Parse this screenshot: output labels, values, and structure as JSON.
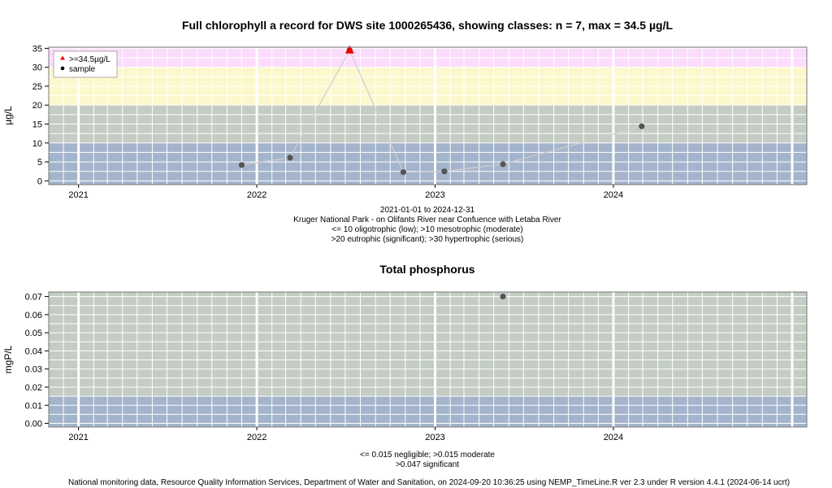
{
  "footer": "National monitoring data, Resource Quality Information Services, Department of Water and Sanitation, on 2024-09-20 10:36:25 using NEMP_TimeLine.R ver 2.3 under R version 4.4.1 (2024-06-14 ucrt)",
  "colors": {
    "panel_bg": "#c4ccc4",
    "band_low": "#a4b4cc",
    "band_moderate": "#c4ccc4",
    "band_eutrophic": "#fcf8cc",
    "band_hypertrophic": "#fcdcfc",
    "grid": "#ffffff",
    "point": "#555555",
    "max_marker": "#ee0000",
    "line": "#cfcfcf"
  },
  "chart_data": [
    {
      "type": "scatter",
      "title": "Full chlorophyll a record for DWS site 1000265436, showing classes: n = 7, max = 34.5 µg/L",
      "ylabel": "µg/L",
      "xlabel": "",
      "xlim": [
        "2020-11-01",
        "2025-01-31"
      ],
      "ylim": [
        -1,
        35.3
      ],
      "x_ticks": [
        "2021-01-01",
        "2022-01-01",
        "2023-01-01",
        "2024-01-01"
      ],
      "x_tick_labels": [
        "2021",
        "2022",
        "2023",
        "2024"
      ],
      "y_ticks": [
        0,
        5,
        10,
        15,
        20,
        25,
        30,
        35
      ],
      "y_tick_labels": [
        "0",
        "5",
        "10",
        "15",
        "20",
        "25",
        "30",
        "35"
      ],
      "bands": [
        {
          "from": -1,
          "to": 10,
          "color": "#a4b4cc"
        },
        {
          "from": 10,
          "to": 20,
          "color": "#c4ccc4"
        },
        {
          "from": 20,
          "to": 30,
          "color": "#fcf8cc"
        },
        {
          "from": 30,
          "to": 35.3,
          "color": "#fcdcfc"
        }
      ],
      "grid": true,
      "legend_position": "top-left",
      "legend": [
        {
          "label": ">=34.5µg/L",
          "marker": "triangle",
          "color": "#ee0000"
        },
        {
          "label": "sample",
          "marker": "circle",
          "color": "#000000"
        }
      ],
      "series": [
        {
          "points": [
            {
              "x": "2021-12-01",
              "y": 4.2
            },
            {
              "x": "2022-03-10",
              "y": 6.1
            },
            {
              "x": "2022-07-10",
              "y": 34.5,
              "max": true
            },
            {
              "x": "2022-10-28",
              "y": 2.3
            },
            {
              "x": "2023-01-20",
              "y": 2.5
            },
            {
              "x": "2023-05-20",
              "y": 4.4
            },
            {
              "x": "2024-02-28",
              "y": 14.4
            }
          ]
        }
      ],
      "captions": [
        "2021-01-01 to 2024-12-31",
        "Kruger National Park - on Olifants River near Confuence with Letaba River",
        "<= 10 oligotrophic (low); >10 mesotrophic (moderate)",
        ">20 eutrophic (significant); >30 hypertrophic (serious)"
      ]
    },
    {
      "type": "scatter",
      "title": "Total phosphorus",
      "ylabel": "mgP/L",
      "xlabel": "",
      "xlim": [
        "2020-11-01",
        "2025-01-31"
      ],
      "ylim": [
        -0.002,
        0.0725
      ],
      "x_ticks": [
        "2021-01-01",
        "2022-01-01",
        "2023-01-01",
        "2024-01-01"
      ],
      "x_tick_labels": [
        "2021",
        "2022",
        "2023",
        "2024"
      ],
      "y_ticks": [
        0,
        0.01,
        0.02,
        0.03,
        0.04,
        0.05,
        0.06,
        0.07
      ],
      "y_tick_labels": [
        "0.00",
        "0.01",
        "0.02",
        "0.03",
        "0.04",
        "0.05",
        "0.06",
        "0.07"
      ],
      "bands": [
        {
          "from": -0.002,
          "to": 0.015,
          "color": "#a4b4cc"
        },
        {
          "from": 0.015,
          "to": 0.0725,
          "color": "#c4ccc4"
        }
      ],
      "grid": true,
      "series": [
        {
          "points": [
            {
              "x": "2023-05-20",
              "y": 0.07
            }
          ]
        }
      ],
      "captions": [
        "<= 0.015 negligible; >0.015 moderate",
        ">0.047 significant"
      ]
    }
  ]
}
